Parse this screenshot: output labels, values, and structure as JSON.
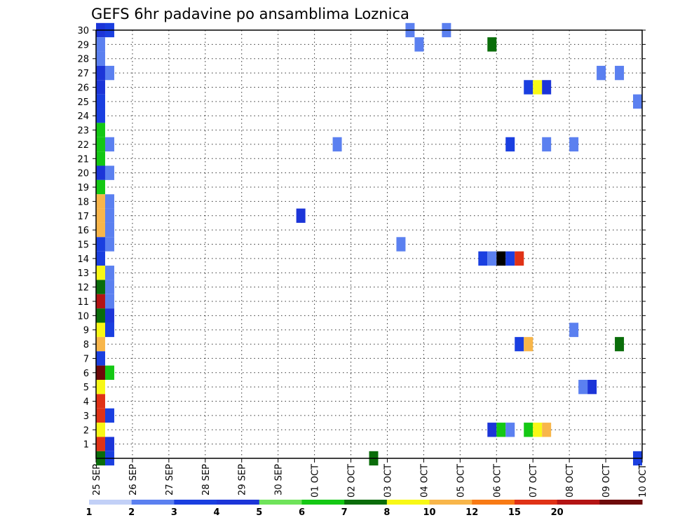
{
  "chart_data": {
    "type": "heatmap",
    "title": "GEFS 6hr padavine po ansamblima Loznica",
    "xlabel": "",
    "ylabel": "",
    "x_ticks": [
      "25 SEP",
      "26 SEP",
      "27 SEP",
      "28 SEP",
      "29 SEP",
      "30 SEP",
      "01 OCT",
      "02 OCT",
      "03 OCT",
      "04 OCT",
      "05 OCT",
      "06 OCT",
      "07 OCT",
      "08 OCT",
      "09 OCT",
      "10 OCT"
    ],
    "xlim": [
      0,
      15
    ],
    "y_ticks": [
      1,
      2,
      3,
      4,
      5,
      6,
      7,
      8,
      9,
      10,
      11,
      12,
      13,
      14,
      15,
      16,
      17,
      18,
      19,
      20,
      21,
      22,
      23,
      24,
      25,
      26,
      27,
      28,
      29,
      30
    ],
    "ylim": [
      0,
      30
    ],
    "grid": true,
    "colorbar": {
      "labels": [
        "1",
        "2",
        "3",
        "4",
        "5",
        "6",
        "7",
        "8",
        "10",
        "12",
        "15",
        "20"
      ],
      "colors": [
        "#c2d0f7",
        "#5b80f0",
        "#1a3fe0",
        "#1c35d8",
        "#6fe35a",
        "#14c814",
        "#0a6d0a",
        "#f8f816",
        "#f8b64a",
        "#f87a14",
        "#e03216",
        "#b41414",
        "#6e0a0a"
      ]
    },
    "cells": [
      [
        0,
        30,
        3
      ],
      [
        0.25,
        30,
        2
      ],
      [
        0,
        29,
        1
      ],
      [
        0,
        28,
        1
      ],
      [
        0,
        27,
        3
      ],
      [
        0.25,
        27,
        1
      ],
      [
        0,
        26,
        3
      ],
      [
        0,
        25,
        2
      ],
      [
        0,
        24,
        2
      ],
      [
        0,
        23,
        5
      ],
      [
        0,
        22,
        5
      ],
      [
        0.25,
        22,
        1
      ],
      [
        0,
        21,
        5
      ],
      [
        0,
        20,
        3
      ],
      [
        0.25,
        20,
        1
      ],
      [
        0,
        19,
        5
      ],
      [
        0,
        18,
        8
      ],
      [
        0.25,
        18,
        1
      ],
      [
        0,
        17,
        8
      ],
      [
        0.25,
        17,
        1
      ],
      [
        0,
        16,
        8
      ],
      [
        0.25,
        16,
        1
      ],
      [
        0,
        15,
        2
      ],
      [
        0.25,
        15,
        1
      ],
      [
        0,
        14,
        2
      ],
      [
        0,
        13,
        7
      ],
      [
        0.25,
        13,
        1
      ],
      [
        0,
        12,
        6
      ],
      [
        0.25,
        12,
        1
      ],
      [
        0,
        11,
        11
      ],
      [
        0.25,
        11,
        1
      ],
      [
        0,
        10,
        6
      ],
      [
        0.25,
        10,
        3
      ],
      [
        0,
        9,
        7
      ],
      [
        0.25,
        9,
        2
      ],
      [
        0,
        8,
        8
      ],
      [
        0,
        7,
        2
      ],
      [
        0,
        6,
        12
      ],
      [
        0.25,
        6,
        5
      ],
      [
        0,
        5,
        7
      ],
      [
        0,
        4,
        10
      ],
      [
        0,
        3,
        10
      ],
      [
        0.25,
        3,
        2
      ],
      [
        0,
        2,
        7
      ],
      [
        0,
        1,
        10
      ],
      [
        0.25,
        1,
        3
      ],
      [
        0,
        0,
        6
      ],
      [
        0.25,
        0,
        2
      ],
      [
        8.5,
        30,
        1
      ],
      [
        9.5,
        30,
        1
      ],
      [
        8.75,
        29,
        1
      ],
      [
        10.75,
        29,
        6
      ],
      [
        13.75,
        27,
        1
      ],
      [
        14.25,
        27,
        1
      ],
      [
        11.75,
        26,
        2
      ],
      [
        12,
        26,
        7
      ],
      [
        12.25,
        26,
        3
      ],
      [
        14.75,
        25,
        1
      ],
      [
        6.5,
        22,
        1
      ],
      [
        11.25,
        22,
        2
      ],
      [
        12.25,
        22,
        1
      ],
      [
        13,
        22,
        1
      ],
      [
        5.5,
        17,
        3
      ],
      [
        8.25,
        15,
        1
      ],
      [
        10.5,
        14,
        2
      ],
      [
        10.75,
        14,
        1
      ],
      [
        11,
        14,
        13
      ],
      [
        11.25,
        14,
        2
      ],
      [
        11.5,
        14,
        10
      ],
      [
        13,
        9,
        1
      ],
      [
        11.5,
        8,
        2
      ],
      [
        11.75,
        8,
        8
      ],
      [
        14.25,
        8,
        6
      ],
      [
        13.25,
        5,
        1
      ],
      [
        13.5,
        5,
        3
      ],
      [
        10.75,
        2,
        3
      ],
      [
        11,
        2,
        5
      ],
      [
        11.25,
        2,
        1
      ],
      [
        11.75,
        2,
        5
      ],
      [
        12,
        2,
        7
      ],
      [
        12.25,
        2,
        8
      ],
      [
        7.5,
        0,
        6
      ],
      [
        14.75,
        0,
        2
      ]
    ]
  }
}
